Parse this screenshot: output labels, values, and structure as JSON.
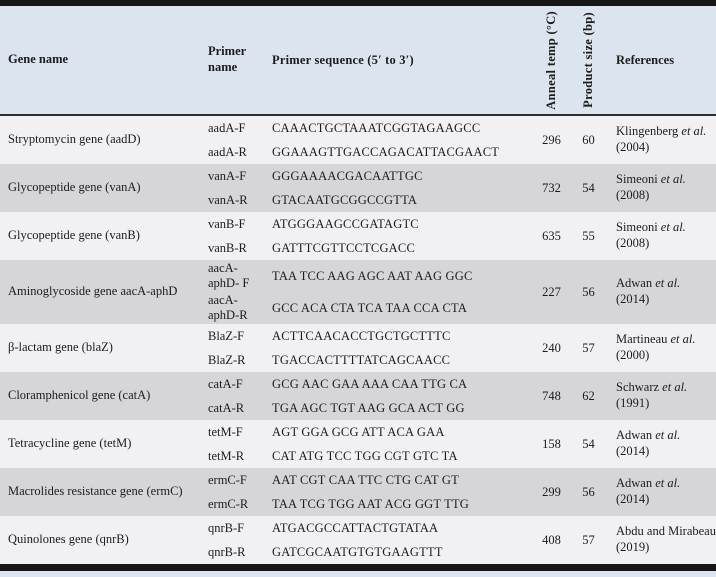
{
  "table": {
    "headers": {
      "gene": "Gene name",
      "primer_name": "Primer name",
      "sequence": "Primer sequence (5′ to 3′)",
      "anneal_temp": "Anneal temp (°C)",
      "product_size": "Product size (bp)",
      "references": "References"
    },
    "rows": [
      {
        "gene": "Stryptomycin gene (aadD)",
        "primers": [
          {
            "name": "aadA-F",
            "seq": "CAAACTGCTAAATCGGTAGAAGCC"
          },
          {
            "name": "aadA-R",
            "seq": "GGAAAGTTGACCAGACATTACGAACT"
          }
        ],
        "anneal_temp": "296",
        "product_size": "60",
        "ref": {
          "name": "Klingenberg",
          "etal": "et al.",
          "year": "(2004)"
        }
      },
      {
        "gene": "Glycopeptide gene (vanA)",
        "primers": [
          {
            "name": "vanA-F",
            "seq": "GGGAAAACGACAATTGC"
          },
          {
            "name": "vanA-R",
            "seq": "GTACAATGCGGCCGTTA"
          }
        ],
        "anneal_temp": "732",
        "product_size": "54",
        "ref": {
          "name": "Simeoni",
          "etal": "et al.",
          "year": "(2008)"
        }
      },
      {
        "gene": "Glycopeptide gene (vanB)",
        "primers": [
          {
            "name": "vanB-F",
            "seq": "ATGGGAAGCCGATAGTC"
          },
          {
            "name": "vanB-R",
            "seq": "GATTTCGTTCCTCGACC"
          }
        ],
        "anneal_temp": "635",
        "product_size": "55",
        "ref": {
          "name": "Simeoni",
          "etal": "et al.",
          "year": "(2008)"
        }
      },
      {
        "gene": "Aminoglycoside gene aacA-aphD",
        "primers": [
          {
            "name": "aacA-aphD- F",
            "seq": "TAA TCC AAG AGC AAT AAG GGC"
          },
          {
            "name": "aacA-aphD-R",
            "seq": "GCC ACA CTA TCA TAA CCA CTA"
          }
        ],
        "anneal_temp": "227",
        "product_size": "56",
        "ref": {
          "name": "Adwan",
          "etal": "et al.",
          "year": "(2014)"
        }
      },
      {
        "gene": "β-lactam gene (blaZ)",
        "primers": [
          {
            "name": "BlaZ-F",
            "seq": "ACTTCAACACCTGCTGCTTTC"
          },
          {
            "name": "BlaZ-R",
            "seq": "TGACCACTTTTATCAGCAACC"
          }
        ],
        "anneal_temp": "240",
        "product_size": "57",
        "ref": {
          "name": "Martineau",
          "etal": "et al.",
          "year": "(2000)"
        }
      },
      {
        "gene": "Cloramphenicol gene (catA)",
        "primers": [
          {
            "name": "catA-F",
            "seq": "GCG AAC GAA AAA CAA TTG CA"
          },
          {
            "name": "catA-R",
            "seq": "TGA AGC TGT AAG GCA ACT GG"
          }
        ],
        "anneal_temp": "748",
        "product_size": "62",
        "ref": {
          "name": "Schwarz",
          "etal": "et al.",
          "year": "(1991)"
        }
      },
      {
        "gene": "Tetracycline gene (tetM)",
        "primers": [
          {
            "name": "tetM-F",
            "seq": "AGT GGA GCG ATT ACA GAA"
          },
          {
            "name": "tetM-R",
            "seq": "CAT ATG TCC TGG CGT GTC TA"
          }
        ],
        "anneal_temp": "158",
        "product_size": "54",
        "ref": {
          "name": "Adwan",
          "etal": "et al.",
          "year": "(2014)"
        }
      },
      {
        "gene": "Macrolides resistance gene (ermC)",
        "primers": [
          {
            "name": "ermC-F",
            "seq": "AAT CGT CAA TTC CTG CAT GT"
          },
          {
            "name": "ermC-R",
            "seq": "TAA TCG TGG AAT ACG GGT TTG"
          }
        ],
        "anneal_temp": "299",
        "product_size": "56",
        "ref": {
          "name": "Adwan",
          "etal": "et al.",
          "year": "(2014)"
        }
      },
      {
        "gene": "Quinolones gene (qnrB)",
        "primers": [
          {
            "name": "qnrB-F",
            "seq": "ATGACGCCATTACTGTATAA"
          },
          {
            "name": "qnrB-R",
            "seq": "GATCGCAATGTGTGAAGTTT"
          }
        ],
        "anneal_temp": "408",
        "product_size": "57",
        "ref": {
          "name": "Abdu and Mirabeau",
          "etal": "",
          "year": "(2019)"
        }
      }
    ]
  },
  "colors": {
    "header_bg": "#dce5ef",
    "row_light": "#f1f1f3",
    "row_dark": "#d6d6d9",
    "bar": "#161616",
    "rule": "#2e2e2e",
    "text": "#1c1c1c"
  }
}
